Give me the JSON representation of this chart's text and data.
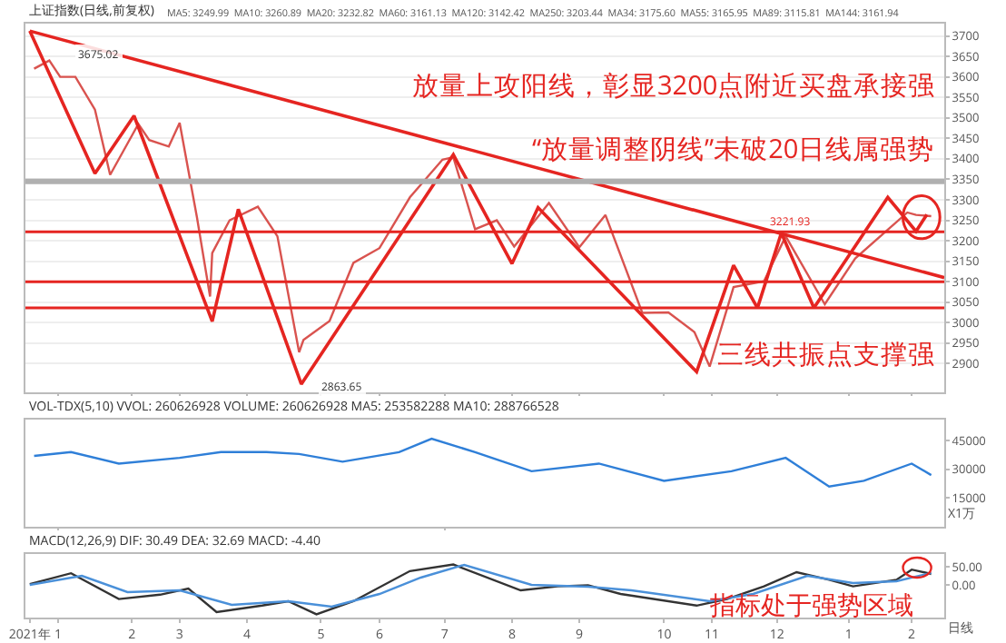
{
  "chart_data": [
    {
      "type": "line",
      "title": "上证指数(日线,前复权)",
      "xlim": [
        "2021-12-20",
        "2023-02-16"
      ],
      "ylim": [
        2830,
        3730
      ],
      "yticks": [
        2900,
        2950,
        3000,
        3050,
        3100,
        3150,
        3200,
        3250,
        3300,
        3350,
        3400,
        3450,
        3500,
        3550,
        3600,
        3650,
        3700
      ],
      "xticks": [
        {
          "value": "2022-01-04",
          "label": null
        },
        {
          "value": "2022-02-07",
          "label": null
        },
        {
          "value": "2022-03-01",
          "label": null
        },
        {
          "value": "2022-04-01",
          "label": null
        },
        {
          "value": "2022-05-05",
          "label": null
        },
        {
          "value": "2022-06-01",
          "label": null
        },
        {
          "value": "2022-07-01",
          "label": null
        },
        {
          "value": "2022-08-01",
          "label": null
        },
        {
          "value": "2022-09-01",
          "label": null
        },
        {
          "value": "2022-10-10",
          "label": null
        },
        {
          "value": "2022-11-01",
          "label": null
        },
        {
          "value": "2022-12-01",
          "label": null
        },
        {
          "value": "2023-01-03",
          "label": null
        },
        {
          "value": "2023-02-01",
          "label": null
        }
      ],
      "tick_labels": "y",
      "grid": "y",
      "series": [
        {
          "color": "#d9534f",
          "x": [
            "2021-12-24",
            "2021-12-31",
            "2022-01-05",
            "2022-01-12",
            "2022-01-21",
            "2022-01-28",
            "2022-02-10",
            "2022-02-15",
            "2022-02-24",
            "2022-03-01",
            "2022-03-09",
            "2022-03-15",
            "2022-03-16",
            "2022-03-24",
            "2022-04-06",
            "2022-04-15",
            "2022-04-25",
            "2022-04-27",
            "2022-05-09",
            "2022-05-20",
            "2022-06-01",
            "2022-06-15",
            "2022-06-30",
            "2022-07-05",
            "2022-07-15",
            "2022-07-25",
            "2022-08-02",
            "2022-08-18",
            "2022-09-01",
            "2022-09-13",
            "2022-09-30",
            "2022-10-12",
            "2022-10-24",
            "2022-10-31",
            "2022-11-11",
            "2022-11-25",
            "2022-12-05",
            "2022-12-23",
            "2023-01-06",
            "2023-01-30",
            "2023-02-03",
            "2023-02-10"
          ],
          "values": [
            3620,
            3640,
            3600,
            3600,
            3520,
            3361,
            3485,
            3446,
            3430,
            3488,
            3256,
            3064,
            3170,
            3250,
            3283,
            3211,
            2928,
            2958,
            3004,
            3146,
            3182,
            3306,
            3398,
            3404,
            3228,
            3250,
            3186,
            3292,
            3184,
            3263,
            3024,
            3025,
            2977,
            2893,
            3087,
            3101,
            3211,
            3045,
            3157,
            3269,
            3263,
            3260
          ]
        },
        {
          "type": "line",
          "color": "#e52521",
          "x": [
            "2021-12-22",
            "2022-01-21",
            "2022-02-08",
            "2022-03-16",
            "2022-03-28",
            "2022-04-26",
            "2022-07-05",
            "2022-08-01",
            "2022-08-13",
            "2022-10-25",
            "2022-11-11",
            "2022-11-22",
            "2022-12-03",
            "2022-12-18",
            "2023-01-21",
            "2023-02-03",
            "2023-02-08"
          ],
          "values": [
            3712,
            3364,
            3505,
            3003,
            3277,
            2850,
            3410,
            3144,
            3281,
            2880,
            3140,
            3036,
            3219,
            3036,
            3306,
            3223,
            3264
          ]
        },
        {
          "type": "line",
          "color": "#e52521",
          "x": [
            "2021-12-22",
            "2023-02-16"
          ],
          "values": [
            3712,
            3110
          ]
        }
      ],
      "ref_lines": [
        {
          "axis": "y",
          "value": 3345,
          "color": "#b0b0b0"
        },
        {
          "axis": "y",
          "value": 3221.93,
          "label": "3221.93",
          "color": "#e52521"
        },
        {
          "axis": "y",
          "value": 3100,
          "color": "#e52521"
        },
        {
          "axis": "y",
          "value": 3036,
          "color": "#e52521"
        }
      ],
      "annotations": [
        "MA5: 3249.99  MA10: 3260.89  MA20: 3232.82  MA60: 3161.13  MA120: 3142.42  MA250: 3203.44  MA34: 3175.60  MA55: 3165.95  MA89: 3115.81  MA144: 3161.94",
        "放量上攻阳线，彰显3200点附近买盘承接强",
        "“放量调整阴线”未破20日线属强势",
        "三线共振点支撑强",
        {
          "text": "3675.02",
          "x": "2022-01-05",
          "y": 3675.02
        },
        {
          "text": "2863.65",
          "x": "2022-04-27",
          "y": 2863.65
        }
      ]
    },
    {
      "type": "line",
      "title": "VOL-TDX(5,10) VVOL: 260626928 VOLUME: 260626928 MA5: 253582288 MA10: 288766528",
      "xlim": [
        "2021-12-20",
        "2023-02-16"
      ],
      "ylim": [
        0,
        56000
      ],
      "yticks": [
        15000,
        30000,
        45000
      ],
      "xticks": [
        {
          "value": "2022-01-04",
          "label": null
        },
        {
          "value": "2022-07-01",
          "label": null
        }
      ],
      "tick_labels": "y",
      "grid": false,
      "x": [
        "2021-12-24",
        "2022-01-10",
        "2022-02-01",
        "2022-03-01",
        "2022-03-20",
        "2022-04-10",
        "2022-04-25",
        "2022-05-15",
        "2022-06-10",
        "2022-06-25",
        "2022-07-15",
        "2022-08-10",
        "2022-09-10",
        "2022-10-10",
        "2022-11-10",
        "2022-12-05",
        "2022-12-25",
        "2023-01-10",
        "2023-02-01",
        "2023-02-10"
      ],
      "series": [
        {
          "color": "#2f7fd8",
          "values": [
            37000,
            39000,
            33000,
            36000,
            39000,
            39000,
            38000,
            34000,
            39000,
            46000,
            39000,
            29000,
            33000,
            24000,
            29000,
            36000,
            21000,
            24000,
            33000,
            27000
          ]
        }
      ],
      "annotations": [
        "X1万"
      ]
    },
    {
      "type": "line",
      "title": "MACD(12,26,9) DIF: 30.49 DEA: 32.69 MACD: -4.40",
      "xlim": [
        "2021-12-20",
        "2023-02-16"
      ],
      "ylim": [
        -90,
        85
      ],
      "yticks": [
        {
          "value": 0,
          "label": "0.00"
        },
        {
          "value": 50,
          "label": "50.00"
        }
      ],
      "xticks": [
        {
          "value": "2021-12-22",
          "label": "2021年"
        },
        {
          "value": "2022-01-04",
          "label": "1"
        },
        {
          "value": "2022-02-07",
          "label": "2"
        },
        {
          "value": "2022-03-01",
          "label": "3"
        },
        {
          "value": "2022-04-01",
          "label": "4"
        },
        {
          "value": "2022-05-05",
          "label": "5"
        },
        {
          "value": "2022-06-01",
          "label": "6"
        },
        {
          "value": "2022-07-01",
          "label": "7"
        },
        {
          "value": "2022-08-01",
          "label": "8"
        },
        {
          "value": "2022-09-01",
          "label": "9"
        },
        {
          "value": "2022-10-10",
          "label": "10"
        },
        {
          "value": "2022-11-01",
          "label": "11"
        },
        {
          "value": "2022-12-01",
          "label": "12"
        },
        {
          "value": "2023-01-03",
          "label": "1"
        },
        {
          "value": "2023-02-01",
          "label": "2"
        }
      ],
      "grid": false,
      "series": [
        {
          "color": "#333333",
          "x": [
            "2021-12-22",
            "2022-01-10",
            "2022-02-01",
            "2022-02-20",
            "2022-03-05",
            "2022-03-18",
            "2022-04-08",
            "2022-04-20",
            "2022-05-03",
            "2022-05-20",
            "2022-06-15",
            "2022-07-05",
            "2022-08-05",
            "2022-08-22",
            "2022-09-05",
            "2022-09-20",
            "2022-10-25",
            "2022-11-08",
            "2022-11-25",
            "2022-12-10",
            "2022-12-25",
            "2023-01-05",
            "2023-01-25",
            "2023-02-01",
            "2023-02-10"
          ],
          "values": [
            2,
            32,
            -39,
            -27,
            -10,
            -75,
            -57,
            -45,
            -81,
            -45,
            38,
            56,
            -15,
            -4,
            -1,
            -25,
            -57,
            -39,
            -4,
            35,
            14,
            -4,
            14,
            42,
            30
          ]
        },
        {
          "color": "#4a90d9",
          "x": [
            "2021-12-22",
            "2022-01-15",
            "2022-02-05",
            "2022-03-01",
            "2022-03-25",
            "2022-04-20",
            "2022-05-10",
            "2022-06-01",
            "2022-06-20",
            "2022-07-10",
            "2022-08-10",
            "2022-09-05",
            "2022-09-25",
            "2022-10-31",
            "2022-11-20",
            "2022-12-15",
            "2023-01-05",
            "2023-01-25",
            "2023-02-10"
          ],
          "values": [
            0,
            25,
            -20,
            -15,
            -55,
            -45,
            -60,
            -25,
            20,
            55,
            0,
            -5,
            -15,
            -45,
            -25,
            25,
            5,
            10,
            33
          ]
        }
      ],
      "annotations": [
        "指标处于强势区域",
        "日线"
      ]
    }
  ]
}
